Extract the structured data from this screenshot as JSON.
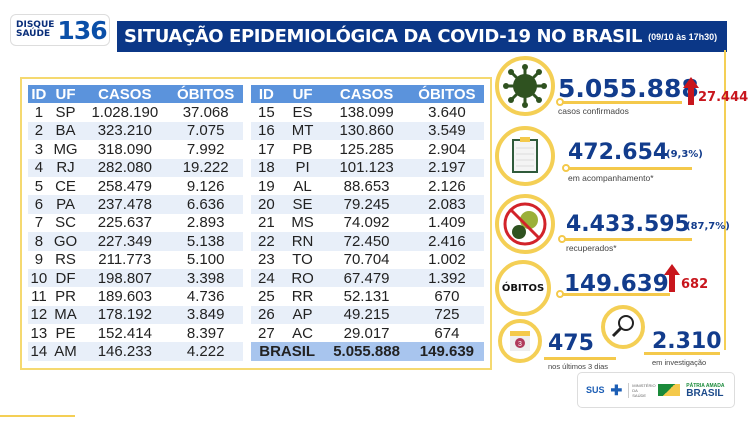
{
  "logo": {
    "line1": "DISQUE",
    "line2": "SAÚDE",
    "number": "136"
  },
  "header": {
    "title": "SITUAÇÃO EPIDEMIOLÓGICA DA COVID-19 NO BRASIL",
    "date": "(09/10 às 17h30)"
  },
  "table": {
    "columns": [
      "ID",
      "UF",
      "CASOS",
      "ÓBITOS"
    ],
    "left_rows": [
      [
        "1",
        "SP",
        "1.028.190",
        "37.068"
      ],
      [
        "2",
        "BA",
        "323.210",
        "7.075"
      ],
      [
        "3",
        "MG",
        "318.090",
        "7.992"
      ],
      [
        "4",
        "RJ",
        "282.080",
        "19.222"
      ],
      [
        "5",
        "CE",
        "258.479",
        "9.126"
      ],
      [
        "6",
        "PA",
        "237.478",
        "6.636"
      ],
      [
        "7",
        "SC",
        "225.637",
        "2.893"
      ],
      [
        "8",
        "GO",
        "227.349",
        "5.138"
      ],
      [
        "9",
        "RS",
        "211.773",
        "5.100"
      ],
      [
        "10",
        "DF",
        "198.807",
        "3.398"
      ],
      [
        "11",
        "PR",
        "189.603",
        "4.736"
      ],
      [
        "12",
        "MA",
        "178.192",
        "3.849"
      ],
      [
        "13",
        "PE",
        "152.414",
        "8.397"
      ],
      [
        "14",
        "AM",
        "146.233",
        "4.222"
      ]
    ],
    "right_rows": [
      [
        "15",
        "ES",
        "138.099",
        "3.640"
      ],
      [
        "16",
        "MT",
        "130.860",
        "3.549"
      ],
      [
        "17",
        "PB",
        "125.285",
        "2.904"
      ],
      [
        "18",
        "PI",
        "101.123",
        "2.197"
      ],
      [
        "19",
        "AL",
        "88.653",
        "2.126"
      ],
      [
        "20",
        "SE",
        "79.245",
        "2.083"
      ],
      [
        "21",
        "MS",
        "74.092",
        "1.409"
      ],
      [
        "22",
        "RN",
        "72.450",
        "2.416"
      ],
      [
        "23",
        "TO",
        "70.704",
        "1.002"
      ],
      [
        "24",
        "RO",
        "67.479",
        "1.392"
      ],
      [
        "25",
        "RR",
        "52.131",
        "670"
      ],
      [
        "26",
        "AP",
        "49.215",
        "725"
      ],
      [
        "27",
        "AC",
        "29.017",
        "674"
      ]
    ],
    "total": {
      "label": "BRASIL",
      "casos": "5.055.888",
      "obitos": "149.639"
    }
  },
  "stats": {
    "confirmed": {
      "value": "5.055.888",
      "increase": "27.444",
      "label": "casos confirmados",
      "icon": "virus-icon"
    },
    "monitoring": {
      "value": "472.654",
      "pct": "(9,3%)",
      "label": "em acompanhamento*",
      "icon": "clipboard-icon"
    },
    "recovered": {
      "value": "4.433.595",
      "pct": "(87,7%)",
      "label": "recuperados*",
      "icon": "no-virus-icon"
    },
    "deaths": {
      "badge": "ÓBITOS",
      "value": "149.639",
      "increase": "682"
    },
    "last3days": {
      "value": "475",
      "label": "nos últimos 3 dias",
      "calendar_day": "3"
    },
    "investigation": {
      "value": "2.310",
      "label": "em investigação",
      "icon": "magnifier-icon"
    }
  },
  "footer": {
    "sus": "SUS",
    "ministry": "MINISTÉRIO DA SAÚDE",
    "gov_line1": "PÁTRIA AMADA",
    "gov_line2": "BRASIL"
  },
  "colors": {
    "title_bg": "#0b3787",
    "header_bg": "#5b93dc",
    "accent_yellow": "#f4cf55",
    "increase_red": "#c8161d",
    "stat_blue": "#123c8c"
  }
}
